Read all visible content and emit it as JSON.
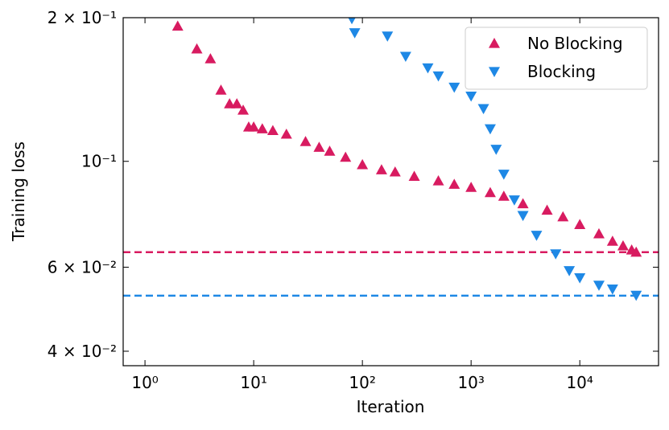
{
  "chart_data": {
    "type": "scatter",
    "xlabel": "Iteration",
    "ylabel": "Training loss",
    "xscale": "log",
    "yscale": "log",
    "xlim": [
      0.63,
      53000
    ],
    "ylim": [
      0.0373,
      0.2
    ],
    "xticks": [
      {
        "value": 1,
        "label": "10⁰"
      },
      {
        "value": 10,
        "label": "10¹"
      },
      {
        "value": 100,
        "label": "10²"
      },
      {
        "value": 1000,
        "label": "10³"
      },
      {
        "value": 10000,
        "label": "10⁴"
      }
    ],
    "yticks": [
      {
        "value": 0.04,
        "label": "4 × 10⁻²"
      },
      {
        "value": 0.06,
        "label": "6 × 10⁻²"
      },
      {
        "value": 0.1,
        "label": "10⁻¹"
      },
      {
        "value": 0.2,
        "label": "2 × 10⁻¹"
      }
    ],
    "legend": "upper right",
    "series": [
      {
        "name": "No Blocking",
        "color": "#d81b60",
        "marker": "triangle-up",
        "x": [
          2,
          3,
          4,
          5,
          6,
          7,
          8,
          9,
          10,
          12,
          15,
          20,
          30,
          40,
          50,
          70,
          100,
          150,
          200,
          300,
          500,
          700,
          1000,
          1500,
          2000,
          3000,
          5000,
          7000,
          10000,
          15000,
          20000,
          25000,
          30000,
          33000
        ],
        "values": [
          0.192,
          0.172,
          0.164,
          0.141,
          0.132,
          0.132,
          0.128,
          0.118,
          0.118,
          0.117,
          0.116,
          0.114,
          0.11,
          0.107,
          0.105,
          0.102,
          0.0984,
          0.096,
          0.095,
          0.093,
          0.091,
          0.0895,
          0.0882,
          0.086,
          0.0845,
          0.0815,
          0.079,
          0.0765,
          0.0737,
          0.0705,
          0.068,
          0.0665,
          0.0652,
          0.0645
        ]
      },
      {
        "name": "Blocking",
        "color": "#1e88e5",
        "marker": "triangle-down",
        "x": [
          80,
          85,
          170,
          250,
          400,
          500,
          700,
          1000,
          1300,
          1500,
          1700,
          2000,
          2500,
          3000,
          4000,
          6000,
          8000,
          10000,
          15000,
          20000,
          33000
        ],
        "values": [
          0.199,
          0.186,
          0.183,
          0.166,
          0.157,
          0.151,
          0.143,
          0.137,
          0.129,
          0.117,
          0.106,
          0.094,
          0.083,
          0.077,
          0.07,
          0.064,
          0.059,
          0.057,
          0.055,
          0.054,
          0.0524
        ]
      }
    ],
    "reference_lines": [
      {
        "value": 0.0645,
        "color": "#d81b60"
      },
      {
        "value": 0.0523,
        "color": "#1e88e5"
      }
    ]
  }
}
